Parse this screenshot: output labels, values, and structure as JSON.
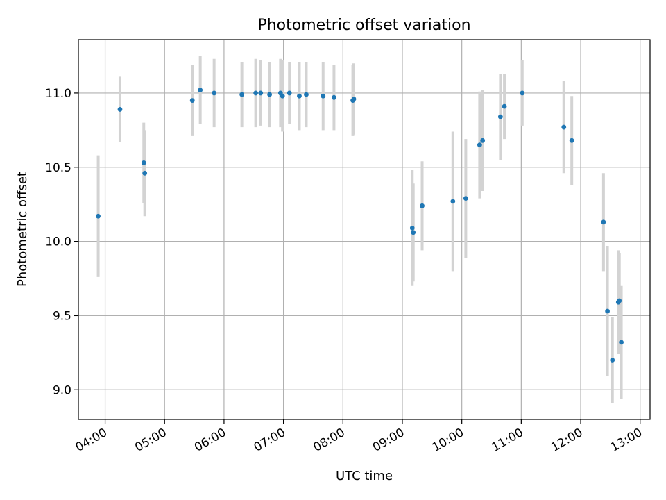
{
  "chart_data": {
    "type": "scatter",
    "title": "Photometric offset variation",
    "xlabel": "UTC time",
    "ylabel": "Photometric offset",
    "xlim": [
      "03:33",
      "13:10"
    ],
    "ylim": [
      8.8,
      11.36
    ],
    "grid": true,
    "x_ticks": [
      "04:00",
      "05:00",
      "06:00",
      "07:00",
      "08:00",
      "09:00",
      "10:00",
      "11:00",
      "12:00",
      "13:00"
    ],
    "y_ticks": [
      9.0,
      9.5,
      10.0,
      10.5,
      11.0
    ],
    "series": [
      {
        "marker_color": "#1f77b4",
        "errorbar_color": "#d3d3d3",
        "points": [
          {
            "x": "03:53",
            "y": 10.17,
            "yerr": 0.41
          },
          {
            "x": "04:15",
            "y": 10.89,
            "yerr": 0.22
          },
          {
            "x": "04:39",
            "y": 10.53,
            "yerr": 0.27
          },
          {
            "x": "04:40",
            "y": 10.46,
            "yerr": 0.29
          },
          {
            "x": "05:28",
            "y": 10.95,
            "yerr": 0.24
          },
          {
            "x": "05:36",
            "y": 11.02,
            "yerr": 0.23
          },
          {
            "x": "05:50",
            "y": 11.0,
            "yerr": 0.23
          },
          {
            "x": "06:18",
            "y": 10.99,
            "yerr": 0.22
          },
          {
            "x": "06:32",
            "y": 11.0,
            "yerr": 0.23
          },
          {
            "x": "06:37",
            "y": 11.0,
            "yerr": 0.22
          },
          {
            "x": "06:46",
            "y": 10.99,
            "yerr": 0.22
          },
          {
            "x": "06:57",
            "y": 11.0,
            "yerr": 0.23
          },
          {
            "x": "06:59",
            "y": 10.98,
            "yerr": 0.24
          },
          {
            "x": "07:06",
            "y": 11.0,
            "yerr": 0.21
          },
          {
            "x": "07:16",
            "y": 10.98,
            "yerr": 0.23
          },
          {
            "x": "07:23",
            "y": 10.99,
            "yerr": 0.22
          },
          {
            "x": "07:40",
            "y": 10.98,
            "yerr": 0.23
          },
          {
            "x": "07:51",
            "y": 10.97,
            "yerr": 0.22
          },
          {
            "x": "08:10",
            "y": 10.95,
            "yerr": 0.24
          },
          {
            "x": "08:11",
            "y": 10.96,
            "yerr": 0.24
          },
          {
            "x": "09:10",
            "y": 10.09,
            "yerr": 0.39
          },
          {
            "x": "09:11",
            "y": 10.06,
            "yerr": 0.33
          },
          {
            "x": "09:20",
            "y": 10.24,
            "yerr": 0.3
          },
          {
            "x": "09:51",
            "y": 10.27,
            "yerr": 0.47
          },
          {
            "x": "10:04",
            "y": 10.29,
            "yerr": 0.4
          },
          {
            "x": "10:18",
            "y": 10.65,
            "yerr": 0.36
          },
          {
            "x": "10:21",
            "y": 10.68,
            "yerr": 0.34
          },
          {
            "x": "10:39",
            "y": 10.84,
            "yerr": 0.29
          },
          {
            "x": "10:43",
            "y": 10.91,
            "yerr": 0.22
          },
          {
            "x": "11:01",
            "y": 11.0,
            "yerr": 0.22
          },
          {
            "x": "11:43",
            "y": 10.77,
            "yerr": 0.31
          },
          {
            "x": "11:51",
            "y": 10.68,
            "yerr": 0.3
          },
          {
            "x": "12:23",
            "y": 10.13,
            "yerr": 0.33
          },
          {
            "x": "12:27",
            "y": 9.53,
            "yerr": 0.44
          },
          {
            "x": "12:32",
            "y": 9.2,
            "yerr": 0.29
          },
          {
            "x": "12:38",
            "y": 9.59,
            "yerr": 0.35
          },
          {
            "x": "12:39",
            "y": 9.6,
            "yerr": 0.32
          },
          {
            "x": "12:41",
            "y": 9.32,
            "yerr": 0.38
          }
        ]
      }
    ]
  }
}
